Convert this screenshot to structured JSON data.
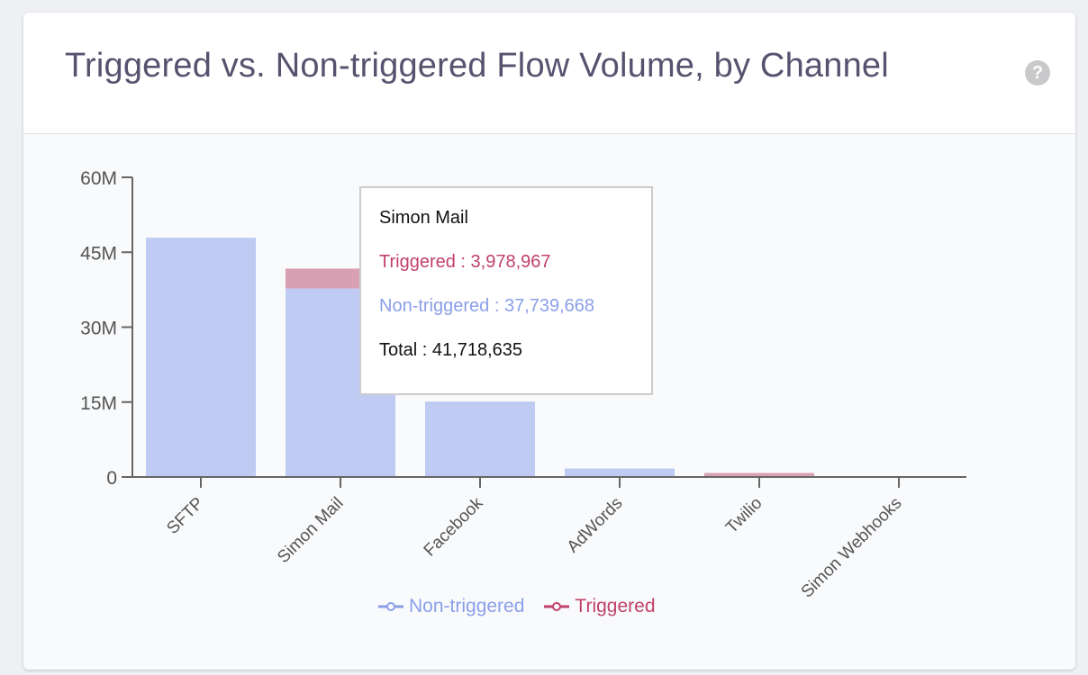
{
  "header": {
    "title": "Triggered vs. Non-triggered Flow Volume, by Channel",
    "help_icon": "?"
  },
  "colors": {
    "non_triggered": "#c0cbf3",
    "triggered": "#d8a0b2",
    "non_triggered_text": "#8a9fe8",
    "triggered_text": "#c0416a"
  },
  "chart_data": {
    "type": "bar",
    "stacked": true,
    "title": "Triggered vs. Non-triggered Flow Volume, by Channel",
    "categories": [
      "SFTP",
      "Simon Mail",
      "Facebook",
      "AdWords",
      "Twilio",
      "Simon Webhooks"
    ],
    "series": [
      {
        "name": "Non-triggered",
        "values": [
          47900000,
          37739668,
          15100000,
          1700000,
          0,
          0
        ]
      },
      {
        "name": "Triggered",
        "values": [
          0,
          3978967,
          0,
          0,
          800000,
          0
        ]
      }
    ],
    "yticks": [
      0,
      15000000,
      30000000,
      45000000,
      60000000
    ],
    "ytick_labels": [
      "0",
      "15M",
      "30M",
      "45M",
      "60M"
    ],
    "ylim": [
      0,
      60000000
    ],
    "legend": "bottom",
    "grid": false
  },
  "tooltip": {
    "title": "Simon Mail",
    "triggered": "Triggered : 3,978,967",
    "non_triggered": "Non-triggered : 37,739,668",
    "total": "Total : 41,718,635"
  },
  "legend": {
    "non_triggered": "Non-triggered",
    "triggered": "Triggered"
  }
}
